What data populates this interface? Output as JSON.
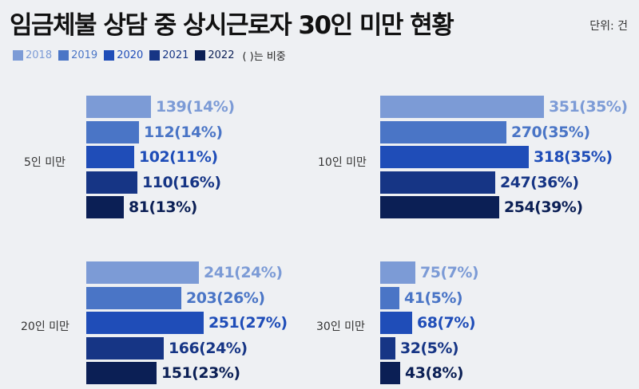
{
  "title": "임금체불 상담 중 상시근로자 30인 미만 현황",
  "unit": "단위: 건",
  "legend_note": "( )는 비중",
  "colors": {
    "2018": "#7c9bd6",
    "2019": "#4a75c6",
    "2020": "#1f4db8",
    "2021": "#163585",
    "2022": "#0b1f55"
  },
  "chart_data": {
    "type": "bar",
    "orientation": "horizontal",
    "series_years": [
      "2018",
      "2019",
      "2020",
      "2021",
      "2022"
    ],
    "panels": [
      {
        "label": "5인 미만",
        "values": [
          139,
          112,
          102,
          110,
          81
        ],
        "labels": [
          "139(14%)",
          "112(14%)",
          "102(11%)",
          "110(16%)",
          "81(13%)"
        ]
      },
      {
        "label": "10인 미만",
        "values": [
          351,
          270,
          318,
          247,
          254
        ],
        "labels": [
          "351(35%)",
          "270(35%)",
          "318(35%)",
          "247(36%)",
          "254(39%)"
        ]
      },
      {
        "label": "20인 미만",
        "values": [
          241,
          203,
          251,
          166,
          151
        ],
        "labels": [
          "241(24%)",
          "203(26%)",
          "251(27%)",
          "166(24%)",
          "151(23%)"
        ]
      },
      {
        "label": "30인 미만",
        "values": [
          75,
          41,
          68,
          32,
          43
        ],
        "labels": [
          "75(7%)",
          "41(5%)",
          "68(7%)",
          "32(5%)",
          "43(8%)"
        ]
      }
    ]
  }
}
